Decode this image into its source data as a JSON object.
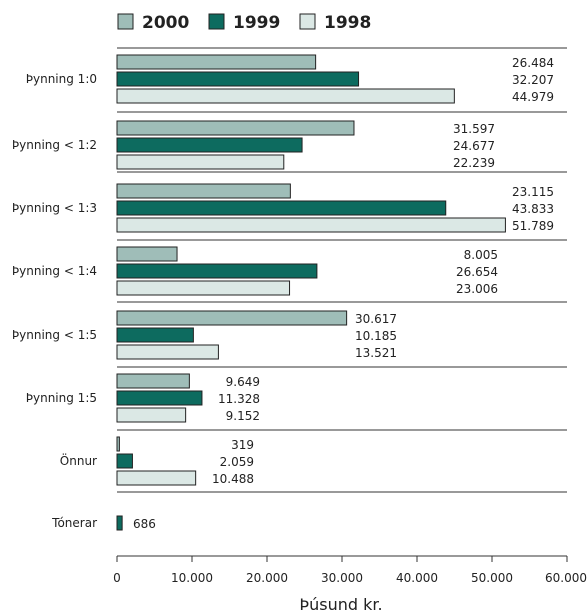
{
  "chart_data": {
    "type": "bar",
    "orientation": "horizontal",
    "xlabel": "Þúsund kr.",
    "xlim": [
      0,
      60000
    ],
    "xticks": [
      "0",
      "10.000",
      "20.000",
      "30.000",
      "40.000",
      "50.000",
      "60.000"
    ],
    "legend_position": "top",
    "grid": false,
    "categories": [
      "Þynning 1:0",
      "Þynning < 1:2",
      "Þynning < 1:3",
      "Þynning < 1:4",
      "Þynning < 1:5",
      "Þynning 1:5",
      "Önnur",
      "Tónerar"
    ],
    "series": [
      {
        "name": "2000",
        "color": "#9fbdb8",
        "values": [
          26484,
          31597,
          23115,
          8005,
          30617,
          9649,
          319,
          686
        ],
        "labels": [
          "26.484",
          "31.597",
          "23.115",
          "8.005",
          "30.617",
          "9.649",
          "319",
          "686"
        ]
      },
      {
        "name": "1999",
        "color": "#0d6b5f",
        "values": [
          32207,
          24677,
          43833,
          26654,
          10185,
          11328,
          2059,
          null
        ],
        "labels": [
          "32.207",
          "24.677",
          "43.833",
          "26.654",
          "10.185",
          "11.328",
          "2.059",
          ""
        ]
      },
      {
        "name": "1998",
        "color": "#dbe8e5",
        "values": [
          44979,
          22239,
          51789,
          23006,
          13521,
          9152,
          10488,
          null
        ],
        "labels": [
          "44.979",
          "22.239",
          "51.789",
          "23.006",
          "13.521",
          "9.152",
          "10.488",
          ""
        ]
      }
    ]
  }
}
